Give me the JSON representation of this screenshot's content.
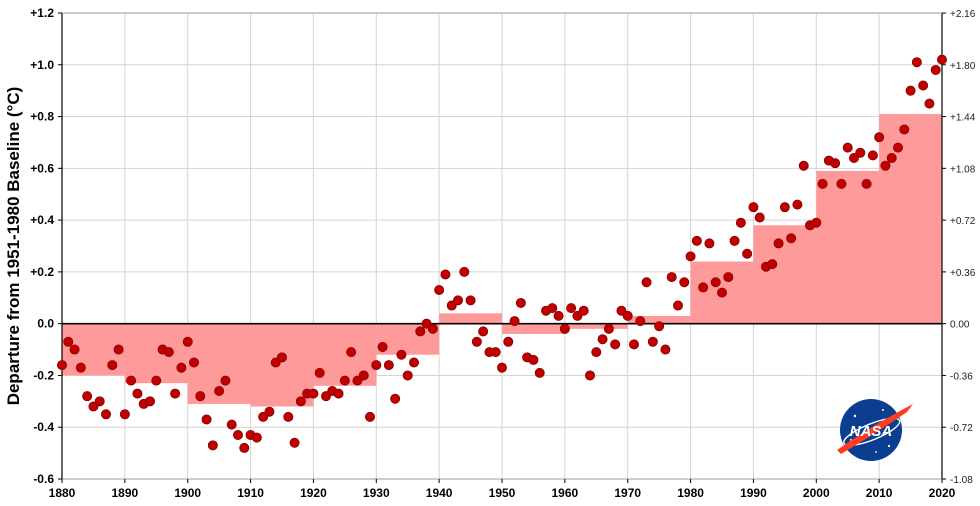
{
  "chart_data": {
    "type": "bar",
    "title": "",
    "ylabel": "Departure from 1951-1980 Baseline (°C)",
    "xlabel": "",
    "xlim": [
      1880,
      2020
    ],
    "ylim": [
      -0.6,
      1.2
    ],
    "y2lim": [
      -1.08,
      2.16
    ],
    "grid": true,
    "x_ticks": [
      "1880",
      "1890",
      "1900",
      "1910",
      "1920",
      "1930",
      "1940",
      "1950",
      "1960",
      "1970",
      "1980",
      "1990",
      "2000",
      "2010",
      "2020"
    ],
    "y_ticks": [
      "+1.2",
      "+1.0",
      "+0.8",
      "+0.6",
      "+0.4",
      "+0.2",
      "0.0",
      "-0.2",
      "-0.4",
      "-0.6"
    ],
    "y2_ticks": [
      "+2.16",
      "+1.80",
      "+1.44",
      "+1.08",
      "+0.72",
      "+0.36",
      "0.00",
      "-0.36",
      "-0.72",
      "-1.08"
    ],
    "colors": {
      "bars": "#ff9a9a",
      "points": "#c00000",
      "point_edge": "#8a0000",
      "grid": "#d4d4d4",
      "axis": "#000000"
    },
    "series": [
      {
        "type": "bar",
        "decade_start": [
          1880,
          1890,
          1900,
          1910,
          1920,
          1930,
          1940,
          1950,
          1960,
          1970,
          1980,
          1990,
          2000,
          2010
        ],
        "values": [
          -0.2,
          -0.23,
          -0.31,
          -0.32,
          -0.24,
          -0.12,
          0.04,
          -0.04,
          -0.02,
          0.03,
          0.24,
          0.38,
          0.59,
          0.81
        ]
      },
      {
        "type": "scatter",
        "x": [
          1880,
          1881,
          1882,
          1883,
          1884,
          1885,
          1886,
          1887,
          1888,
          1889,
          1890,
          1891,
          1892,
          1893,
          1894,
          1895,
          1896,
          1897,
          1898,
          1899,
          1900,
          1901,
          1902,
          1903,
          1904,
          1905,
          1906,
          1907,
          1908,
          1909,
          1910,
          1911,
          1912,
          1913,
          1914,
          1915,
          1916,
          1917,
          1918,
          1919,
          1920,
          1921,
          1922,
          1923,
          1924,
          1925,
          1926,
          1927,
          1928,
          1929,
          1930,
          1931,
          1932,
          1933,
          1934,
          1935,
          1936,
          1937,
          1938,
          1939,
          1940,
          1941,
          1942,
          1943,
          1944,
          1945,
          1946,
          1947,
          1948,
          1949,
          1950,
          1951,
          1952,
          1953,
          1954,
          1955,
          1956,
          1957,
          1958,
          1959,
          1960,
          1961,
          1962,
          1963,
          1964,
          1965,
          1966,
          1967,
          1968,
          1969,
          1970,
          1971,
          1972,
          1973,
          1974,
          1975,
          1976,
          1977,
          1978,
          1979,
          1980,
          1981,
          1982,
          1983,
          1984,
          1985,
          1986,
          1987,
          1988,
          1989,
          1990,
          1991,
          1992,
          1993,
          1994,
          1995,
          1996,
          1997,
          1998,
          1999,
          2000,
          2001,
          2002,
          2003,
          2004,
          2005,
          2006,
          2007,
          2008,
          2009,
          2010,
          2011,
          2012,
          2013,
          2014,
          2015,
          2016,
          2017,
          2018,
          2019,
          2020
        ],
        "values": [
          -0.16,
          -0.07,
          -0.1,
          -0.17,
          -0.28,
          -0.32,
          -0.3,
          -0.35,
          -0.16,
          -0.1,
          -0.35,
          -0.22,
          -0.27,
          -0.31,
          -0.3,
          -0.22,
          -0.1,
          -0.11,
          -0.27,
          -0.17,
          -0.07,
          -0.15,
          -0.28,
          -0.37,
          -0.47,
          -0.26,
          -0.22,
          -0.39,
          -0.43,
          -0.48,
          -0.43,
          -0.44,
          -0.36,
          -0.34,
          -0.15,
          -0.13,
          -0.36,
          -0.46,
          -0.3,
          -0.27,
          -0.27,
          -0.19,
          -0.28,
          -0.26,
          -0.27,
          -0.22,
          -0.11,
          -0.22,
          -0.2,
          -0.36,
          -0.16,
          -0.09,
          -0.16,
          -0.29,
          -0.12,
          -0.2,
          -0.15,
          -0.03,
          0.0,
          -0.02,
          0.13,
          0.19,
          0.07,
          0.09,
          0.2,
          0.09,
          -0.07,
          -0.03,
          -0.11,
          -0.11,
          -0.17,
          -0.07,
          0.01,
          0.08,
          -0.13,
          -0.14,
          -0.19,
          0.05,
          0.06,
          0.03,
          -0.02,
          0.06,
          0.03,
          0.05,
          -0.2,
          -0.11,
          -0.06,
          -0.02,
          -0.08,
          0.05,
          0.03,
          -0.08,
          0.01,
          0.16,
          -0.07,
          -0.01,
          -0.1,
          0.18,
          0.07,
          0.16,
          0.26,
          0.32,
          0.14,
          0.31,
          0.16,
          0.12,
          0.18,
          0.32,
          0.39,
          0.27,
          0.45,
          0.41,
          0.22,
          0.23,
          0.31,
          0.45,
          0.33,
          0.46,
          0.61,
          0.38,
          0.39,
          0.54,
          0.63,
          0.62,
          0.54,
          0.68,
          0.64,
          0.66,
          0.54,
          0.65,
          0.72,
          0.61,
          0.64,
          0.68,
          0.75,
          0.9,
          1.01,
          0.92,
          0.85,
          0.98,
          1.02
        ]
      }
    ]
  },
  "logo": {
    "icon": "nasa-meatball-logo",
    "text": "NASA"
  }
}
